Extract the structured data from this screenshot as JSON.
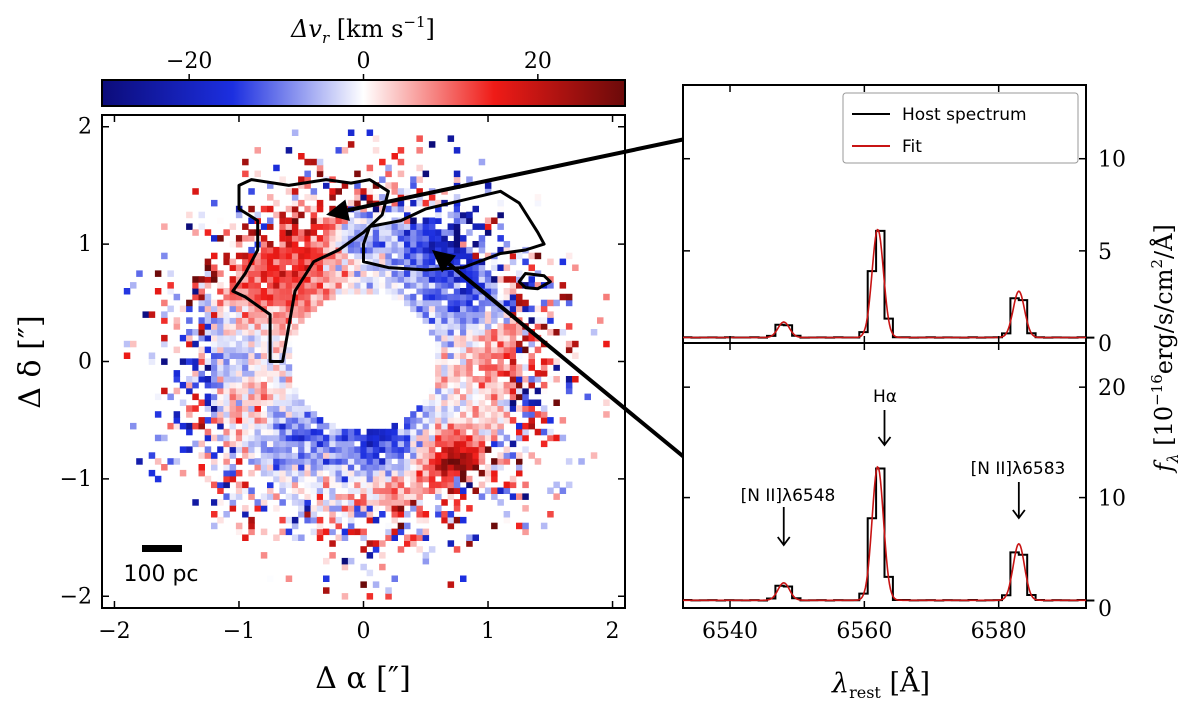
{
  "chart_data": [
    {
      "type": "heatmap",
      "panel": "velocity-map",
      "xlabel": "Δ α [″]",
      "ylabel": "Δ δ [″]",
      "xlim": [
        -2.1,
        2.1
      ],
      "ylim": [
        -2.1,
        2.1
      ],
      "xticks": [
        -2,
        -1,
        0,
        1,
        2
      ],
      "yticks": [
        -2,
        -1,
        0,
        1,
        2
      ],
      "xtick_labels": [
        "−2",
        "−1",
        "0",
        "1",
        "2"
      ],
      "ytick_labels": [
        "−2",
        "−1",
        "0",
        "1",
        "2"
      ],
      "colorbar": {
        "label": "Δv_r [km s⁻¹]",
        "range": [
          -30,
          30
        ],
        "ticks": [
          -20,
          0,
          20
        ],
        "tick_labels": [
          "−20",
          "0",
          "20"
        ],
        "colormap": [
          "#0c0c7a",
          "#1c2fe0",
          "#ffffff",
          "#ef1b17",
          "#6b0a0a"
        ]
      },
      "masked_region": {
        "center": [
          0,
          0
        ],
        "radius_arcsec": 0.6
      },
      "field_extent_arcsec": {
        "inner_radius": 0.6,
        "outer_radius": 2.0
      },
      "contours": [
        {
          "name": "redshifted-region",
          "points": [
            [
              -1.0,
              1.5
            ],
            [
              -0.9,
              1.55
            ],
            [
              -0.6,
              1.5
            ],
            [
              -0.3,
              1.55
            ],
            [
              -0.1,
              1.52
            ],
            [
              0.05,
              1.55
            ],
            [
              0.2,
              1.45
            ],
            [
              0.15,
              1.25
            ],
            [
              0.0,
              1.1
            ],
            [
              -0.2,
              0.95
            ],
            [
              -0.4,
              0.85
            ],
            [
              -0.55,
              0.6
            ],
            [
              -0.6,
              0.3
            ],
            [
              -0.65,
              0.0
            ],
            [
              -0.75,
              0.0
            ],
            [
              -0.75,
              0.4
            ],
            [
              -0.95,
              0.55
            ],
            [
              -1.05,
              0.6
            ],
            [
              -0.95,
              0.75
            ],
            [
              -0.85,
              0.95
            ],
            [
              -0.85,
              1.2
            ],
            [
              -1.0,
              1.3
            ]
          ]
        },
        {
          "name": "blueshifted-region",
          "points": [
            [
              0.0,
              1.0
            ],
            [
              0.05,
              1.15
            ],
            [
              0.3,
              1.2
            ],
            [
              0.5,
              1.3
            ],
            [
              0.9,
              1.4
            ],
            [
              1.1,
              1.45
            ],
            [
              1.25,
              1.35
            ],
            [
              1.4,
              1.1
            ],
            [
              1.45,
              1.0
            ],
            [
              1.3,
              0.95
            ],
            [
              1.1,
              0.92
            ],
            [
              0.8,
              0.8
            ],
            [
              0.5,
              0.78
            ],
            [
              0.2,
              0.8
            ],
            [
              0.0,
              0.85
            ]
          ]
        },
        {
          "name": "small-blob",
          "points": [
            [
              1.25,
              0.68
            ],
            [
              1.3,
              0.75
            ],
            [
              1.45,
              0.73
            ],
            [
              1.5,
              0.68
            ],
            [
              1.4,
              0.62
            ],
            [
              1.3,
              0.63
            ]
          ]
        }
      ],
      "annotations": [
        {
          "text": "100 pc",
          "type": "scale-bar"
        }
      ],
      "arrow_targets": [
        [
          -0.3,
          1.25
        ],
        [
          0.55,
          0.95
        ]
      ]
    },
    {
      "type": "line",
      "panel": "spectrum-top",
      "title": "",
      "xlim": [
        6533,
        6593
      ],
      "ylim": [
        0,
        14
      ],
      "yticks": [
        0,
        5,
        10
      ],
      "ytick_labels": [
        "0",
        "5",
        "10"
      ],
      "legend_position": "top-right",
      "series": [
        {
          "name": "Host spectrum",
          "color": "#000000",
          "style": "steps"
        },
        {
          "name": "Fit",
          "color": "#c81414",
          "style": "smooth"
        }
      ],
      "continuum": 0.3,
      "peaks": [
        {
          "line": "[N II]λ6548",
          "center": 6548,
          "amplitude": 0.9
        },
        {
          "line": "Hα",
          "center": 6562,
          "amplitude": 6.3
        },
        {
          "line": "[N II]λ6583",
          "center": 6583,
          "amplitude": 2.7
        }
      ]
    },
    {
      "type": "line",
      "panel": "spectrum-bottom",
      "xlim": [
        6533,
        6593
      ],
      "ylim": [
        0,
        24
      ],
      "xticks": [
        6540,
        6560,
        6580
      ],
      "xtick_labels": [
        "6540",
        "6560",
        "6580"
      ],
      "yticks": [
        0,
        10,
        20
      ],
      "ytick_labels": [
        "0",
        "10",
        "20"
      ],
      "xlabel": "λ_rest [Å]",
      "ylabel": "f_λ [10⁻¹⁶erg/s/cm²/Å]",
      "series": [
        {
          "name": "Host spectrum",
          "color": "#000000",
          "style": "steps"
        },
        {
          "name": "Fit",
          "color": "#c81414",
          "style": "smooth"
        }
      ],
      "continuum": 0.7,
      "peaks": [
        {
          "line": "[N II]λ6548",
          "center": 6548,
          "amplitude": 1.7
        },
        {
          "line": "Hα",
          "center": 6562,
          "amplitude": 13.0
        },
        {
          "line": "[N II]λ6583",
          "center": 6583,
          "amplitude": 5.5
        }
      ],
      "annotations": [
        {
          "text": "[N II]λ6548",
          "target": 6548
        },
        {
          "text": "Hα",
          "target": 6563
        },
        {
          "text": "[N II]λ6583",
          "target": 6583
        }
      ]
    }
  ],
  "labels": {
    "colorbar_label": "Δv",
    "colorbar_sub": "r",
    "colorbar_unit": " [km s",
    "colorbar_exp": "−1",
    "colorbar_close": "]",
    "map_ylabel": "Δ δ [″]",
    "map_xlabel": "Δ α [″]",
    "scale_bar": "100 pc",
    "spec_xlabel_main": "λ",
    "spec_xlabel_sub": "rest",
    "spec_xlabel_unit": " [Å]",
    "spec_ylabel": "f",
    "spec_ylabel_sub": "λ",
    "spec_ylabel_unit": " [10",
    "spec_ylabel_exp": "−16",
    "spec_ylabel_rest": "erg/s/cm",
    "spec_ylabel_exp2": "2",
    "spec_ylabel_end": "/Å]",
    "legend_host": "Host spectrum",
    "legend_fit": "Fit",
    "ann_nii_6548": "[N II]λ6548",
    "ann_halpha": "Hα",
    "ann_nii_6583": "[N II]λ6583"
  },
  "colors": {
    "host": "#000000",
    "fit": "#c81414",
    "contour": "#000000"
  }
}
